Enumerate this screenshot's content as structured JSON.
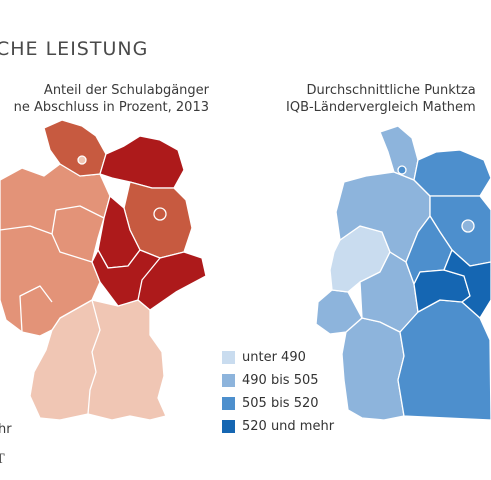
{
  "title": "CHE LEISTUNG",
  "left_map": {
    "subtitle_line1": "Anteil der Schulabgänger",
    "subtitle_line2": "ne Abschluss in Prozent, 2013",
    "legend_fragment": "hr"
  },
  "right_map": {
    "subtitle_line1": "Durchschnittliche Punktza",
    "subtitle_line2": "IQB-Ländervergleich Mathem"
  },
  "legend": {
    "items": [
      {
        "label": "unter 490",
        "color": "#c9dcef"
      },
      {
        "label": "490 bis 505",
        "color": "#8db4dc"
      },
      {
        "label": "505 bis 520",
        "color": "#4d8fcd"
      },
      {
        "label": "520 und mehr",
        "color": "#1566b2"
      }
    ]
  },
  "source_mark": "T",
  "colors": {
    "red_light": "#f0c6b4",
    "red_mid": "#e39378",
    "red_dark": "#c75a40",
    "red_darkest": "#ad1a1b",
    "border": "#ffffff"
  }
}
